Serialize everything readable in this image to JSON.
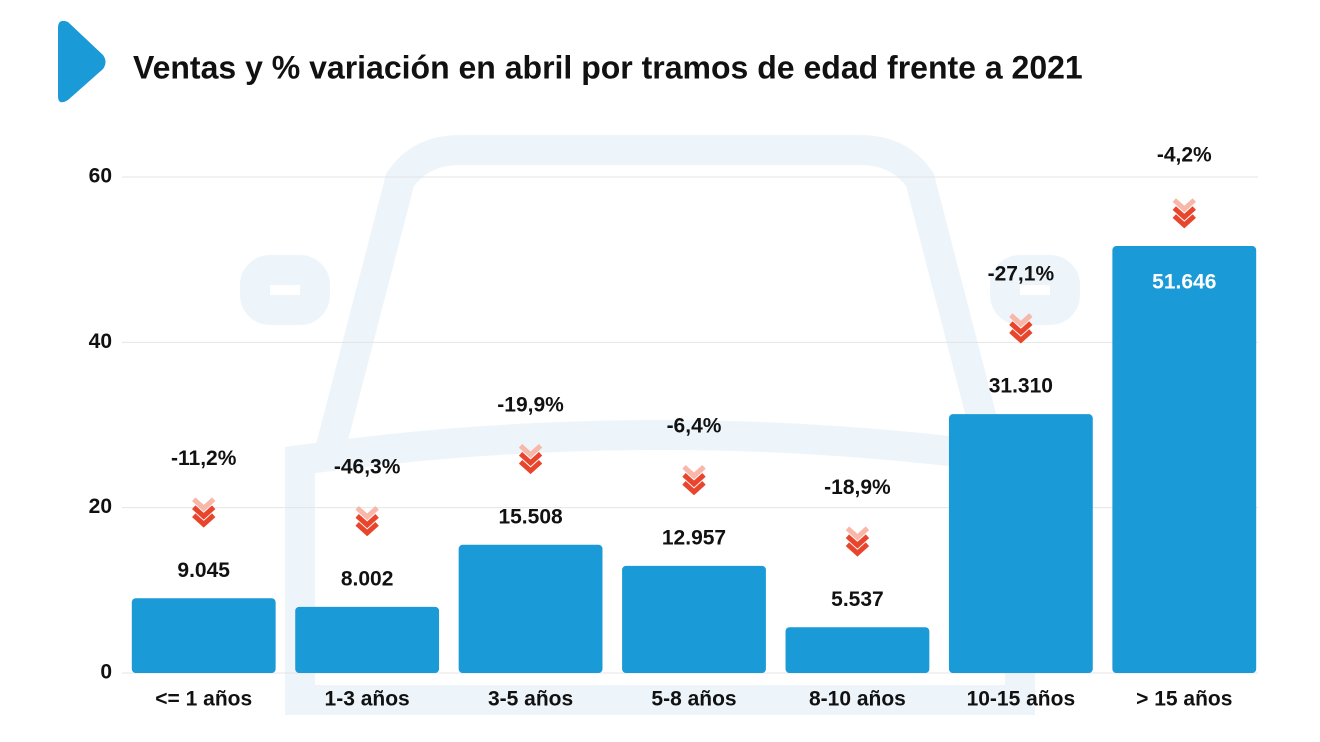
{
  "chart_data": {
    "type": "bar",
    "title": "Ventas y % variación en abril por tramos de edad frente a 2021",
    "categories": [
      "<= 1 años",
      "1-3 años",
      "3-5 años",
      "5-8 años",
      "8-10 años",
      "10-15 años",
      "> 15 años"
    ],
    "values": [
      9.045,
      8.002,
      15.508,
      12.957,
      5.537,
      31.31,
      51.646
    ],
    "value_labels": [
      "9.045",
      "8.002",
      "15.508",
      "12.957",
      "5.537",
      "31.310",
      "51.646"
    ],
    "annotations": [
      "-11,2%",
      "-46,3%",
      "-19,9%",
      "-6,4%",
      "-18,9%",
      "-27,1%",
      "-4,2%"
    ],
    "color": "#1a9ad6",
    "ylim": [
      0,
      60
    ],
    "yticks": [
      0,
      20,
      40,
      60
    ],
    "grid": true
  }
}
